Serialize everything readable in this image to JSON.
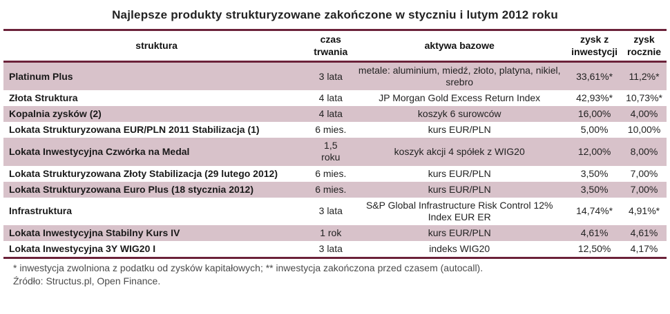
{
  "title": "Najlepsze produkty strukturyzowane zakończone w styczniu i lutym 2012 roku",
  "footnote": "* inwestycja zwolniona z podatku od zysków kapitałowych; ** inwestycja zakończona przed czasem (autocall).",
  "source": "Źródło: Structus.pl, Open Finance.",
  "colors": {
    "row_alt": "#d8c2ca",
    "border": "#6b2139"
  },
  "chart_data": {
    "type": "table",
    "title": "Najlepsze produkty strukturyzowane zakończone w styczniu i lutym 2012 roku",
    "columns": [
      "struktura",
      "czas trwania",
      "aktywa bazowe",
      "zysk z inwestycji",
      "zysk rocznie"
    ],
    "rows": [
      [
        "Platinum Plus",
        "3 lata",
        "metale: aluminium, miedź, złoto, platyna, nikiel, srebro",
        "33,61%*",
        "11,2%*"
      ],
      [
        "Złota Struktura",
        "4 lata",
        "JP Morgan Gold Excess Return Index",
        "42,93%*",
        "10,73%*"
      ],
      [
        "Kopalnia zysków (2)",
        "4 lata",
        "koszyk 6 surowców",
        "16,00%",
        "4,00%"
      ],
      [
        "Lokata Strukturyzowana EUR/PLN 2011 Stabilizacja (1)",
        "6 mies.",
        "kurs EUR/PLN",
        "5,00%",
        "10,00%"
      ],
      [
        "Lokata Inwestycyjna Czwórka na Medal",
        "1,5 roku",
        "koszyk akcji 4 spółek z WIG20",
        "12,00%",
        "8,00%"
      ],
      [
        "Lokata Strukturyzowana Złoty Stabilizacja (29 lutego 2012)",
        "6 mies.",
        "kurs EUR/PLN",
        "3,50%",
        "7,00%"
      ],
      [
        "Lokata Strukturyzowana Euro Plus (18 stycznia 2012)",
        "6 mies.",
        "kurs EUR/PLN",
        "3,50%",
        "7,00%"
      ],
      [
        "Infrastruktura",
        "3 lata",
        "S&P Global Infrastructure Risk Control 12% Index EUR ER",
        "14,74%*",
        "4,91%*"
      ],
      [
        "Lokata Inwestycyjna Stabilny Kurs IV",
        "1 rok",
        "kurs EUR/PLN",
        "4,61%",
        "4,61%"
      ],
      [
        "Lokata Inwestycyjna 3Y WIG20 I",
        "3 lata",
        "indeks WIG20",
        "12,50%",
        "4,17%"
      ]
    ]
  }
}
